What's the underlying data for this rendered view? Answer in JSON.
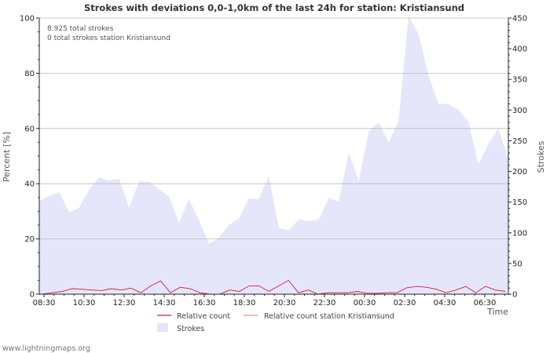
{
  "chart_data": {
    "type": "area",
    "title": "Strokes with deviations 0,0-1,0km of the last 24h for station: Kristiansund",
    "info_lines": [
      "8.925 total strokes",
      "0 total strokes station Kristiansund"
    ],
    "xlabel": "Time",
    "ylabel_left": "Percent   [%]",
    "ylabel_right": "Strokes",
    "x_tick_labels": [
      "08:30",
      "10:30",
      "12:30",
      "14:30",
      "16:30",
      "18:30",
      "20:30",
      "22:30",
      "00:30",
      "02:30",
      "04:30",
      "06:30"
    ],
    "ylim_left": [
      0,
      100
    ],
    "ylim_right": [
      0,
      450
    ],
    "y_ticks_left": [
      0,
      20,
      40,
      60,
      80,
      100
    ],
    "y_ticks_right": [
      0,
      50,
      100,
      150,
      200,
      250,
      300,
      350,
      400,
      450
    ],
    "grid": true,
    "series": [
      {
        "name": "Strokes",
        "axis": "right",
        "color": "#e6e6fa",
        "values": [
          152,
          160,
          166,
          133,
          141,
          171,
          190,
          185,
          188,
          141,
          184,
          183,
          171,
          159,
          117,
          155,
          121,
          82,
          92,
          113,
          123,
          156,
          155,
          192,
          108,
          104,
          122,
          119,
          122,
          157,
          151,
          231,
          184,
          265,
          280,
          247,
          283,
          454,
          424,
          356,
          310,
          310,
          300,
          281,
          212,
          245,
          270,
          220
        ]
      },
      {
        "name": "Relative count",
        "axis": "left",
        "color": "#cc1b45",
        "values": [
          0,
          0.5,
          1,
          2,
          1.8,
          1.5,
          1.3,
          2,
          1.5,
          2.2,
          0.5,
          3,
          4.8,
          0.5,
          2.5,
          2,
          0.5,
          0,
          0,
          1.5,
          1,
          3,
          3,
          1,
          3,
          5,
          0.5,
          1.5,
          0,
          0.5,
          0.5,
          0.5,
          1,
          0.3,
          0.3,
          0.5,
          0.5,
          2.3,
          2.8,
          2.5,
          1.8,
          0.5,
          1.5,
          2.8,
          0.5,
          2.8,
          1.5,
          1
        ]
      },
      {
        "name": "Relative count station Kristiansund",
        "axis": "left",
        "color": "#f09080",
        "values": []
      }
    ]
  },
  "footer": "www.lightningmaps.org"
}
